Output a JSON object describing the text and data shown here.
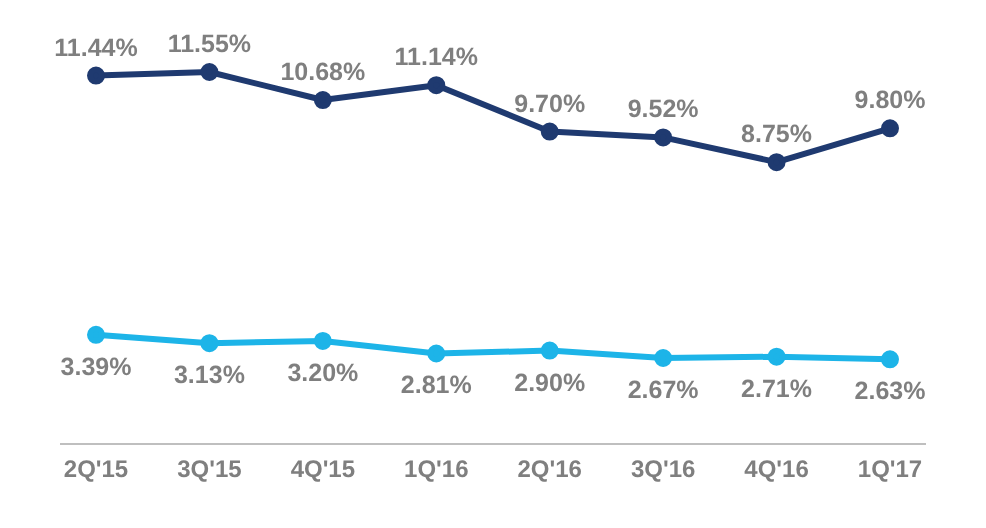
{
  "chart_data": {
    "type": "line",
    "categories": [
      "2Q'15",
      "3Q'15",
      "4Q'15",
      "1Q'16",
      "2Q'16",
      "3Q'16",
      "4Q'16",
      "1Q'17"
    ],
    "series": [
      {
        "color": "#1f3a70",
        "values": [
          11.44,
          11.55,
          10.68,
          11.14,
          9.7,
          9.52,
          8.75,
          9.8
        ],
        "value_labels": [
          "11.44%",
          "11.55%",
          "10.68%",
          "11.14%",
          "9.70%",
          "9.52%",
          "8.75%",
          "9.80%"
        ]
      },
      {
        "color": "#1db4e8",
        "values": [
          3.39,
          3.13,
          3.2,
          2.81,
          2.9,
          2.67,
          2.71,
          2.63
        ],
        "value_labels": [
          "3.39%",
          "3.13%",
          "3.20%",
          "2.81%",
          "2.90%",
          "2.67%",
          "2.71%",
          "2.63%"
        ]
      }
    ],
    "marker": "circle",
    "grid": false,
    "legend": false,
    "tick_labels": "x"
  }
}
